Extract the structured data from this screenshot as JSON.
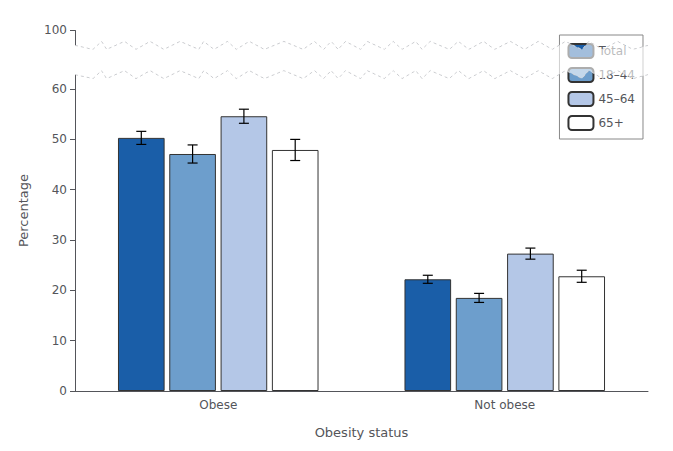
{
  "chart_data": {
    "type": "bar",
    "categories": [
      "Obese",
      "Not obese"
    ],
    "series": [
      {
        "name": "Total",
        "color": "#1a5ea8",
        "values": [
          50.3,
          22.2
        ],
        "errors": [
          1.3,
          0.8
        ]
      },
      {
        "name": "18–44",
        "color": "#6d9ecc",
        "values": [
          47.1,
          18.5
        ],
        "errors": [
          1.8,
          0.9
        ]
      },
      {
        "name": "45–64",
        "color": "#b4c7e7",
        "values": [
          54.6,
          27.3
        ],
        "errors": [
          1.4,
          1.1
        ]
      },
      {
        "name": "65+",
        "color": "#ffffff",
        "values": [
          47.9,
          22.8
        ],
        "errors": [
          2.1,
          1.2
        ]
      }
    ],
    "xlabel": "Obesity status",
    "ylabel": "Percentage",
    "ylim": [
      0,
      100
    ],
    "yticks": [
      0,
      10,
      20,
      30,
      40,
      50,
      60,
      100
    ],
    "grid": false,
    "legend": "upper right"
  }
}
